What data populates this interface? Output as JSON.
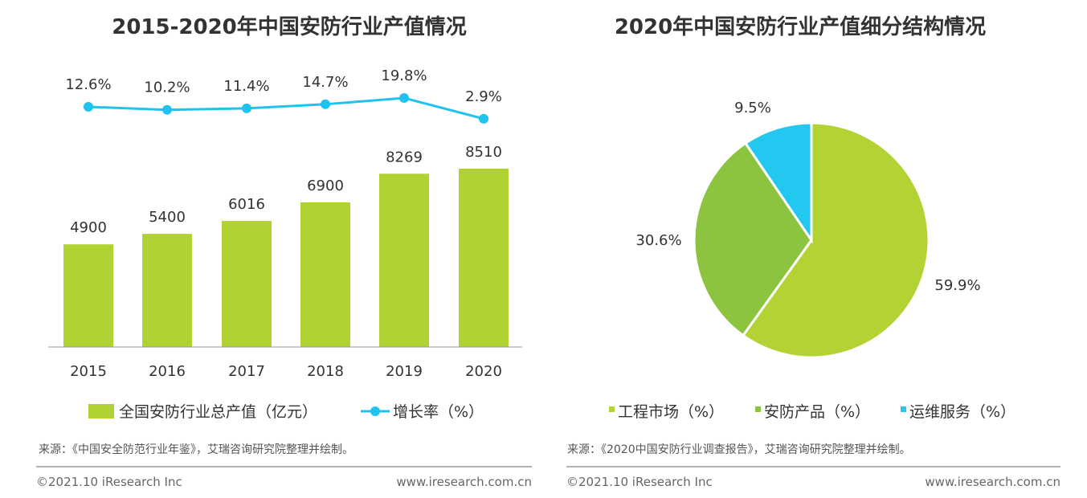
{
  "chart_data": [
    {
      "type": "bar+line",
      "title": "2015-2020年中国安防行业产值情况",
      "categories": [
        "2015",
        "2016",
        "2017",
        "2018",
        "2019",
        "2020"
      ],
      "series": [
        {
          "name": "全国安防行业总产值（亿元）",
          "type": "bar",
          "values": [
            4900,
            5400,
            6016,
            6900,
            8269,
            8510
          ],
          "color": "#b1d233"
        },
        {
          "name": "增长率（%）",
          "type": "line",
          "values": [
            12.6,
            10.2,
            11.4,
            14.7,
            19.8,
            2.9
          ],
          "labels": [
            "12.6%",
            "10.2%",
            "11.4%",
            "14.7%",
            "19.8%",
            "2.9%"
          ],
          "color": "#1fc3ee"
        }
      ],
      "legend": "bottom",
      "source": "来源：《中国安全防范行业年鉴》，艾瑞咨询研究院整理并绘制。"
    },
    {
      "type": "pie",
      "title": "2020年中国安防行业产值细分结构情况",
      "slices": [
        {
          "name": "工程市场（%）",
          "value": 59.9,
          "label": "59.9%",
          "color": "#b3d334"
        },
        {
          "name": "安防产品（%）",
          "value": 30.6,
          "label": "30.6%",
          "color": "#8cc43f"
        },
        {
          "name": "运维服务（%）",
          "value": 9.5,
          "label": "9.5%",
          "color": "#22c8f0"
        }
      ],
      "legend": "bottom",
      "source": "来源：《2020中国安防行业调查报告》，艾瑞咨询研究院整理并绘制。"
    }
  ],
  "footer": {
    "copyright": "©2021.10 iResearch Inc",
    "url": "www.iresearch.com.cn"
  }
}
